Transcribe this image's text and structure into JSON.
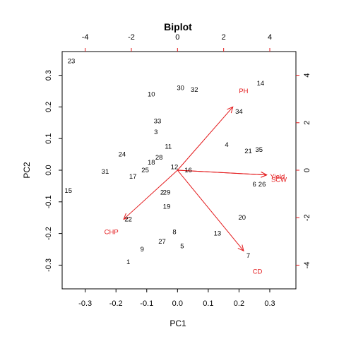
{
  "chart_data": {
    "type": "scatter",
    "title": "Biplot",
    "xlabel": "PC1",
    "ylabel": "PC2",
    "xlim": [
      -0.375,
      0.385
    ],
    "ylim": [
      -0.375,
      0.375
    ],
    "x_ticks": [
      "-0.3",
      "-0.2",
      "-0.1",
      "0.0",
      "0.1",
      "0.2",
      "0.3"
    ],
    "x_tick_values": [
      -0.3,
      -0.2,
      -0.1,
      0.0,
      0.1,
      0.2,
      0.3
    ],
    "y_ticks": [
      "-0.3",
      "-0.2",
      "-0.1",
      "0.0",
      "0.1",
      "0.2",
      "0.3"
    ],
    "y_tick_values": [
      -0.3,
      -0.2,
      -0.1,
      0.0,
      0.1,
      0.2,
      0.3
    ],
    "top_ticks": [
      "-4",
      "-2",
      "0",
      "2",
      "4"
    ],
    "top_tick_values": [
      -4,
      -2,
      0,
      2,
      4
    ],
    "right_ticks": [
      "4",
      "2",
      "0",
      "-2",
      "-4"
    ],
    "right_tick_values": [
      4,
      2,
      0,
      -2,
      -4
    ],
    "secondary_scale": 13.33,
    "observations": [
      {
        "label": "1",
        "x": -0.16,
        "y": -0.29
      },
      {
        "label": "2",
        "x": -0.05,
        "y": -0.07
      },
      {
        "label": "3",
        "x": -0.07,
        "y": 0.12
      },
      {
        "label": "4",
        "x": 0.16,
        "y": 0.08
      },
      {
        "label": "5",
        "x": 0.015,
        "y": -0.24
      },
      {
        "label": "6",
        "x": 0.25,
        "y": -0.045
      },
      {
        "label": "7",
        "x": 0.23,
        "y": -0.27
      },
      {
        "label": "8",
        "x": -0.01,
        "y": -0.195
      },
      {
        "label": "9",
        "x": -0.115,
        "y": -0.25
      },
      {
        "label": "10",
        "x": -0.085,
        "y": 0.24
      },
      {
        "label": "11",
        "x": -0.03,
        "y": 0.075
      },
      {
        "label": "12",
        "x": -0.01,
        "y": 0.01
      },
      {
        "label": "13",
        "x": 0.13,
        "y": -0.2
      },
      {
        "label": "14",
        "x": 0.27,
        "y": 0.275
      },
      {
        "label": "15",
        "x": -0.355,
        "y": -0.065
      },
      {
        "label": "16",
        "x": 0.035,
        "y": 0.0
      },
      {
        "label": "17",
        "x": -0.145,
        "y": -0.02
      },
      {
        "label": "18",
        "x": -0.085,
        "y": 0.025
      },
      {
        "label": "19",
        "x": -0.035,
        "y": -0.115
      },
      {
        "label": "20",
        "x": 0.21,
        "y": -0.15
      },
      {
        "label": "21",
        "x": 0.23,
        "y": 0.06
      },
      {
        "label": "22",
        "x": -0.16,
        "y": -0.155
      },
      {
        "label": "23",
        "x": -0.345,
        "y": 0.345
      },
      {
        "label": "24",
        "x": -0.18,
        "y": 0.05
      },
      {
        "label": "25",
        "x": -0.105,
        "y": 0.0
      },
      {
        "label": "26",
        "x": 0.275,
        "y": -0.045
      },
      {
        "label": "27",
        "x": -0.05,
        "y": -0.225
      },
      {
        "label": "28",
        "x": -0.06,
        "y": 0.04
      },
      {
        "label": "29",
        "x": -0.035,
        "y": -0.07
      },
      {
        "label": "30",
        "x": 0.01,
        "y": 0.26
      },
      {
        "label": "31",
        "x": -0.235,
        "y": -0.005
      },
      {
        "label": "32",
        "x": 0.055,
        "y": 0.255
      },
      {
        "label": "33",
        "x": -0.065,
        "y": 0.155
      },
      {
        "label": "34",
        "x": 0.2,
        "y": 0.185
      },
      {
        "label": "35",
        "x": 0.265,
        "y": 0.065
      }
    ],
    "loadings": [
      {
        "name": "PH",
        "x": 0.18,
        "y": 0.2,
        "label_x": 0.215,
        "label_y": 0.25
      },
      {
        "name": "Yield",
        "x": 0.29,
        "y": -0.015,
        "label_x": 0.325,
        "label_y": -0.02
      },
      {
        "name": "SCW",
        "x": 0.29,
        "y": -0.015,
        "label_x": 0.33,
        "label_y": -0.03
      },
      {
        "name": "CD",
        "x": 0.215,
        "y": -0.255,
        "label_x": 0.26,
        "label_y": -0.32
      },
      {
        "name": "CHP",
        "x": -0.175,
        "y": -0.155,
        "label_x": -0.215,
        "label_y": -0.195
      }
    ],
    "observation_color": "#000000",
    "loading_color": "#e41a1c",
    "grid": false,
    "legend": "none"
  }
}
